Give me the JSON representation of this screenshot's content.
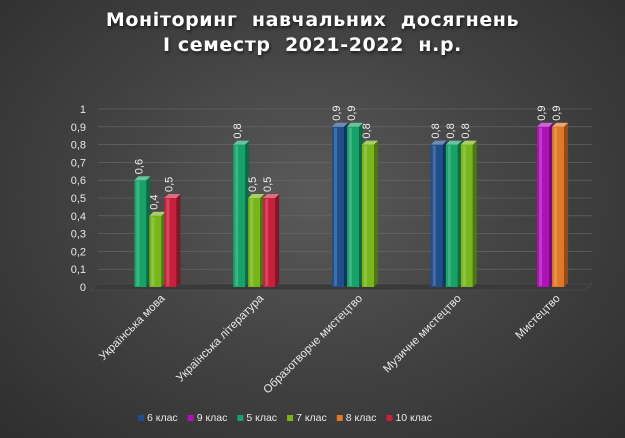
{
  "chart_data": {
    "type": "bar",
    "title": [
      "Моніторинг  навчальних  досягнень",
      "І семестр  2021-2022  н.р."
    ],
    "xlabel": "",
    "ylabel": "",
    "ylim": [
      0,
      1
    ],
    "y_ticks": [
      "0",
      "0,1",
      "0,2",
      "0,3",
      "0,4",
      "0,5",
      "0,6",
      "0,7",
      "0,8",
      "0,9",
      "1"
    ],
    "grid": true,
    "legend_position": "bottom",
    "categories": [
      "Українська мова",
      "Українська література",
      "Образотворче мистецтво",
      "Музичне мистецтво",
      "Мистецтво"
    ],
    "series": [
      {
        "name": "6 клас",
        "color": "#1f4e8c",
        "values": [
          null,
          null,
          0.9,
          0.8,
          null
        ],
        "labels": [
          null,
          null,
          "0,9",
          "0,8",
          null
        ]
      },
      {
        "name": "9 клас",
        "color": "#b010b8",
        "values": [
          null,
          null,
          null,
          null,
          0.9
        ],
        "labels": [
          null,
          null,
          null,
          null,
          "0,9"
        ]
      },
      {
        "name": "5 клас",
        "color": "#16a36a",
        "values": [
          0.6,
          0.8,
          0.9,
          0.8,
          null
        ],
        "labels": [
          "0,6",
          "0,8",
          "0,9",
          "0,8",
          null
        ]
      },
      {
        "name": "7 клас",
        "color": "#78b61c",
        "values": [
          0.4,
          0.5,
          0.8,
          0.8,
          null
        ],
        "labels": [
          "0,4",
          "0,5",
          "0,8",
          "0,8",
          null
        ]
      },
      {
        "name": "8 клас",
        "color": "#e07828",
        "values": [
          null,
          null,
          null,
          null,
          0.9
        ],
        "labels": [
          null,
          null,
          null,
          null,
          "0,9"
        ]
      },
      {
        "name": "10 клас",
        "color": "#c8203c",
        "values": [
          0.5,
          0.5,
          null,
          null,
          null
        ],
        "labels": [
          "0,5",
          "0,5",
          null,
          null,
          null
        ]
      }
    ]
  }
}
